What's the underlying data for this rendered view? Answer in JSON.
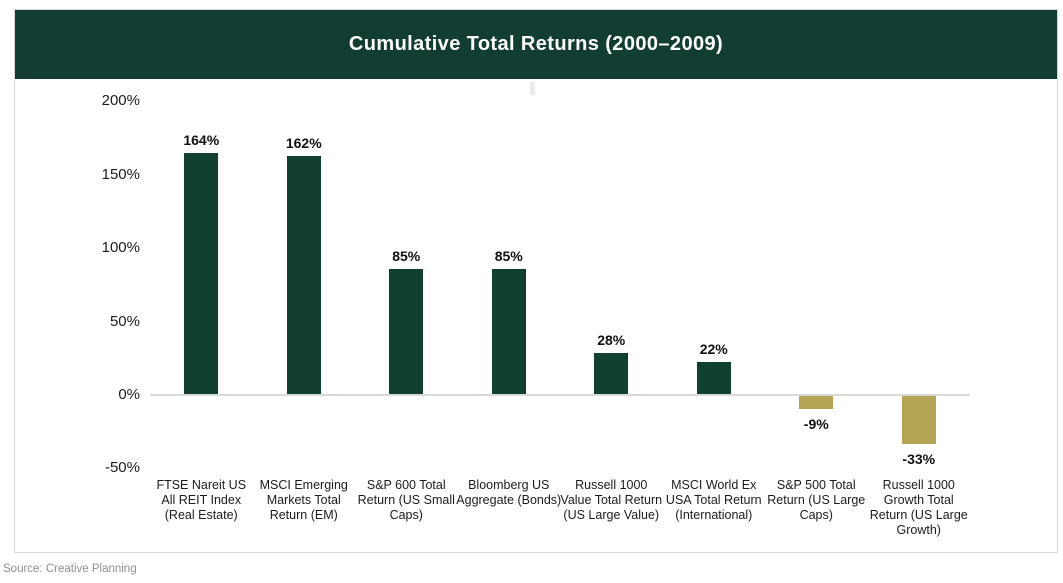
{
  "header": {
    "title": "Cumulative Total Returns (2000–2009)",
    "bg_color": "#123d33",
    "text_color": "#ffffff"
  },
  "source": {
    "label": "Source: Creative Planning"
  },
  "chart_data": {
    "type": "bar",
    "title": "Cumulative Total Returns (2000–2009)",
    "categories": [
      "FTSE Nareit US All REIT Index (Real Estate)",
      "MSCI Emerging Markets Total Return (EM)",
      "S&P 600 Total Return (US Small Caps)",
      "Bloomberg US Aggregate (Bonds)",
      "Russell 1000 Value Total Return (US Large Value)",
      "MSCI World Ex USA Total Return (International)",
      "S&P 500 Total Return (US Large Caps)",
      "Russell 1000 Growth Total Return (US Large Growth)"
    ],
    "values": [
      164,
      162,
      85,
      85,
      28,
      22,
      -9,
      -33
    ],
    "value_labels": [
      "164%",
      "162%",
      "85%",
      "85%",
      "28%",
      "22%",
      "-9%",
      "-33%"
    ],
    "xlabel": "",
    "ylabel": "",
    "ylim": [
      -50,
      200
    ],
    "ytick_labels": [
      "200%",
      "150%",
      "100%",
      "50%",
      "0%",
      "-50%"
    ],
    "ytick_values": [
      200,
      150,
      100,
      50,
      0,
      -50
    ],
    "grid": "off",
    "legend": "none",
    "positive_color": "#10412f",
    "negative_color": "#b4a455",
    "axis_color": "#d9d9d9"
  }
}
